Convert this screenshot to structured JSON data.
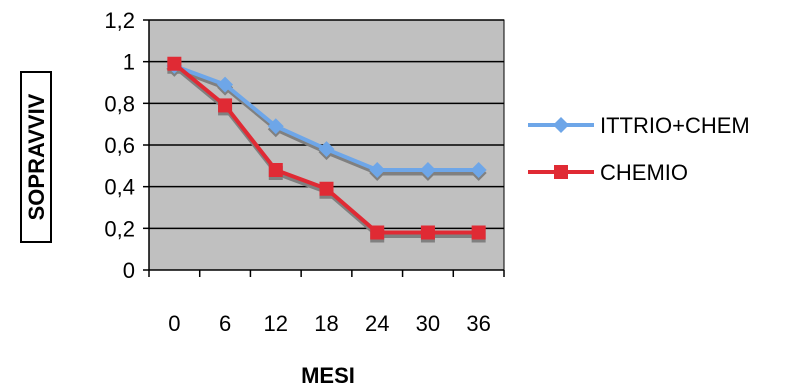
{
  "chart_data": {
    "type": "line",
    "title": "",
    "xlabel": "MESI",
    "ylabel": "SOPRAVVIV",
    "categories": [
      "0",
      "6",
      "12",
      "18",
      "24",
      "30",
      "36"
    ],
    "x": [
      0,
      6,
      12,
      18,
      24,
      30,
      36
    ],
    "ylim": [
      0,
      1.2
    ],
    "yticks": [
      "0",
      "0,2",
      "0,4",
      "0,6",
      "0,8",
      "1",
      "1,2"
    ],
    "grid": true,
    "legend": "right",
    "series": [
      {
        "name": "ITTRIO+CHEM",
        "values": [
          0.98,
          0.89,
          0.69,
          0.58,
          0.48,
          0.48,
          0.48
        ],
        "color": "#6ea6e8",
        "marker": "diamond"
      },
      {
        "name": "CHEMIO",
        "values": [
          0.99,
          0.79,
          0.48,
          0.39,
          0.18,
          0.18,
          0.18
        ],
        "color": "#e02a34",
        "marker": "square"
      }
    ],
    "plot_background": "#c0c0c0",
    "shadow_color": "#808080"
  }
}
